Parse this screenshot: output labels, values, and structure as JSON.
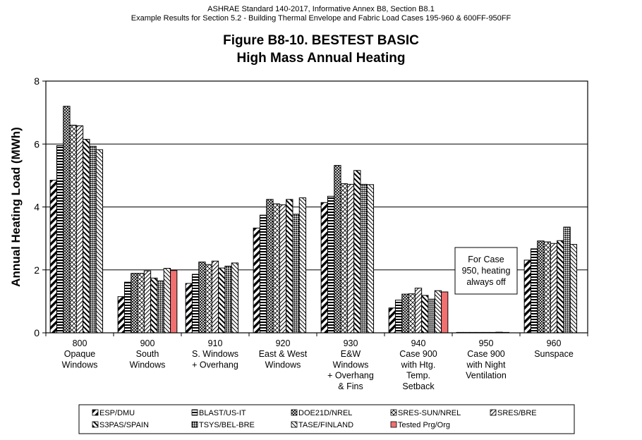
{
  "header": {
    "line1": "ASHRAE Standard 140-2017, Informative Annex B8, Section B8.1",
    "line2": "Example Results for Section 5.2 - Building Thermal Envelope and Fabric Load Cases 195-960 & 600FF-950FF"
  },
  "chart_data": {
    "type": "bar",
    "title": "Figure B8-10.  BESTEST BASIC",
    "subtitle": "High Mass Annual Heating",
    "ylabel": "Annual Heating Load (MWh)",
    "xlabel": "",
    "ylim": [
      0,
      8
    ],
    "yticks": [
      0,
      2,
      4,
      6,
      8
    ],
    "grid": true,
    "legend_position": "bottom",
    "categories": [
      [
        "800",
        "Opaque",
        "Windows"
      ],
      [
        "900",
        "South",
        "Windows"
      ],
      [
        "910",
        "S. Windows",
        "+ Overhang"
      ],
      [
        "920",
        "East & West",
        "Windows"
      ],
      [
        "930",
        "E&W",
        "Windows",
        "+ Overhang",
        "& Fins"
      ],
      [
        "940",
        "Case 900",
        "with Htg.",
        "Temp.",
        "Setback"
      ],
      [
        "950",
        "Case 900",
        "with Night",
        "Ventilation"
      ],
      [
        "960",
        "Sunspace"
      ]
    ],
    "series": [
      {
        "name": "ESP/DMU",
        "pattern": "diag-thick",
        "values": [
          4.85,
          1.15,
          1.57,
          3.33,
          4.14,
          0.79,
          0.0,
          2.31
        ]
      },
      {
        "name": "BLAST/US-IT",
        "pattern": "hlines",
        "values": [
          5.95,
          1.61,
          1.86,
          3.74,
          4.34,
          1.04,
          0.0,
          2.67
        ]
      },
      {
        "name": "DOE21D/NREL",
        "pattern": "crosshatch",
        "values": [
          7.2,
          1.89,
          2.25,
          4.24,
          5.32,
          1.23,
          0.0,
          2.92
        ]
      },
      {
        "name": "SRES-SUN/NREL",
        "pattern": "cross-diag",
        "values": [
          6.6,
          1.89,
          2.17,
          4.1,
          4.74,
          1.24,
          0.0,
          2.89
        ]
      },
      {
        "name": "SRES/BRE",
        "pattern": "cross-diag-fine",
        "values": [
          6.58,
          1.97,
          2.28,
          4.07,
          4.72,
          1.42,
          0.0,
          2.84
        ]
      },
      {
        "name": "S3PAS/SPAIN",
        "pattern": "diag-medium",
        "values": [
          6.15,
          1.74,
          2.06,
          4.24,
          5.16,
          1.19,
          0.0,
          2.93
        ]
      },
      {
        "name": "TSYS/BEL-BRE",
        "pattern": "checker",
        "values": [
          5.93,
          1.65,
          2.12,
          3.77,
          4.72,
          1.07,
          0.02,
          3.36
        ]
      },
      {
        "name": "TASE/FINLAND",
        "pattern": "diag-thin",
        "values": [
          5.82,
          2.05,
          2.22,
          4.29,
          4.71,
          1.34,
          0.0,
          2.81
        ]
      },
      {
        "name": "Tested Prg/Org",
        "pattern": "solid",
        "color": "#f07070",
        "values": [
          null,
          1.98,
          null,
          null,
          null,
          1.3,
          null,
          null
        ]
      }
    ],
    "annotations": [
      {
        "category": "950",
        "text": [
          "For Case",
          "950, heating",
          "always off"
        ]
      }
    ]
  }
}
